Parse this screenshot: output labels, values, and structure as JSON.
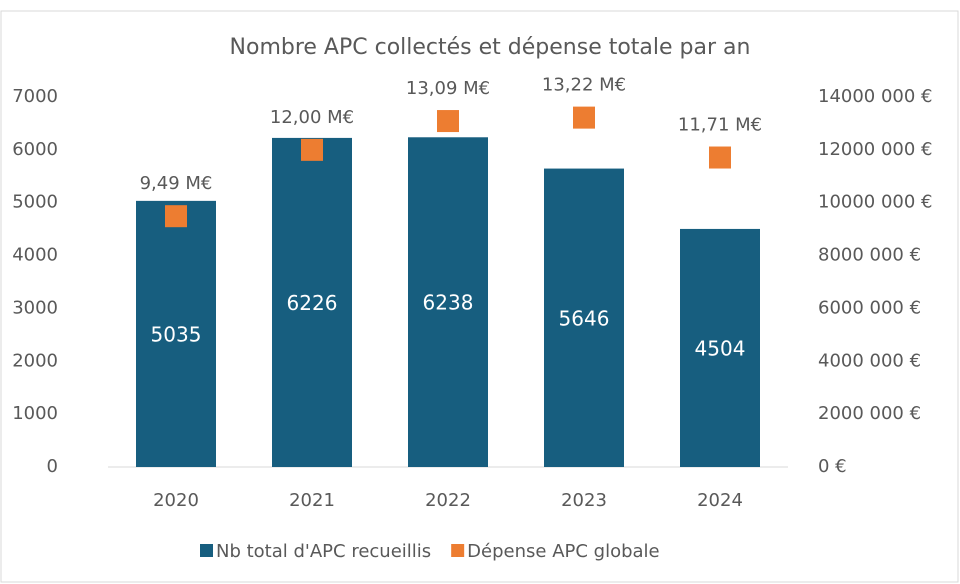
{
  "chart_data": {
    "type": "bar",
    "title": "Nombre APC collectés et dépense totale par an",
    "categories": [
      "2020",
      "2021",
      "2022",
      "2023",
      "2024"
    ],
    "series": [
      {
        "name": "Nb total d'APC recueillis",
        "color": "#175e7f",
        "type": "bar",
        "values": [
          5035,
          6226,
          6238,
          5646,
          4504
        ]
      },
      {
        "name": "Dépense APC globale",
        "color": "#ed7d31",
        "type": "scatter",
        "axis": "y2",
        "values": [
          9490000,
          12000000,
          13090000,
          13220000,
          11710000
        ],
        "value_labels": [
          "9,49 M€",
          "12,00 M€",
          "13,09 M€",
          "13,22 M€",
          "11,71 M€"
        ]
      }
    ],
    "ylim": [
      0,
      7000
    ],
    "yticks": [
      0,
      1000,
      2000,
      3000,
      4000,
      5000,
      6000,
      7000
    ],
    "y2lim": [
      0,
      14000000
    ],
    "y2ticks": [
      {
        "value": 0,
        "label": "0 €"
      },
      {
        "value": 2000000,
        "label": "2000 000 €"
      },
      {
        "value": 4000000,
        "label": "4000 000 €"
      },
      {
        "value": 6000000,
        "label": "6000 000 €"
      },
      {
        "value": 8000000,
        "label": "8000 000 €"
      },
      {
        "value": 10000000,
        "label": "10000 000 €"
      },
      {
        "value": 12000000,
        "label": "12000 000 €"
      },
      {
        "value": 14000000,
        "label": "14000 000 €"
      }
    ],
    "grid": false,
    "legend": "bottom"
  }
}
